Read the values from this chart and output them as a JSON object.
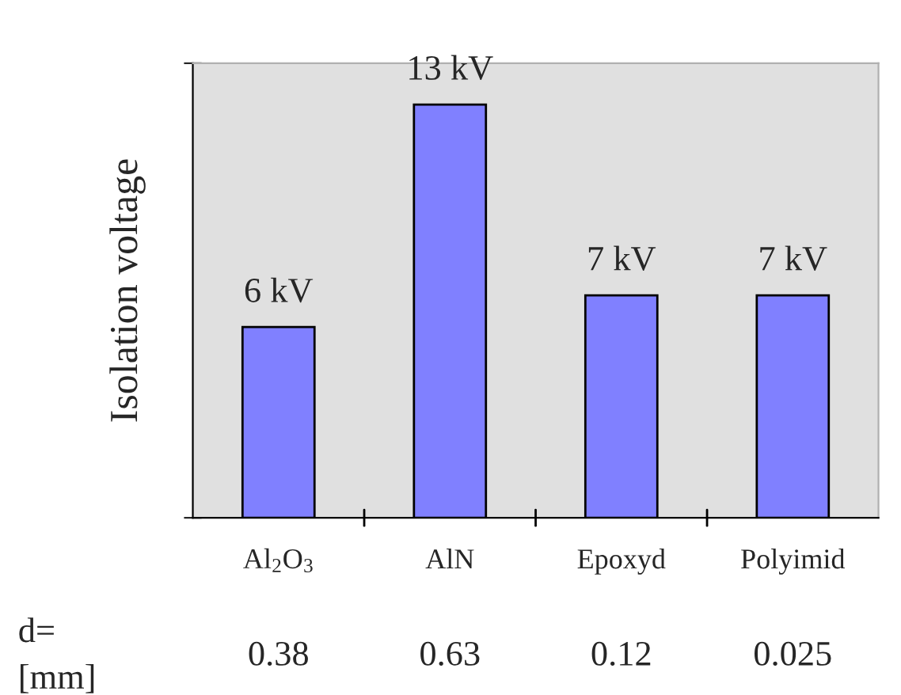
{
  "chart_data": {
    "type": "bar",
    "ylabel": "Isolation voltage",
    "categories": [
      "Al$_{2}$O$_{3}$",
      "AlN",
      "Epoxyd",
      "Polyimid"
    ],
    "values": [
      6,
      13,
      7,
      7
    ],
    "value_labels": [
      "6 kV",
      "13 kV",
      "7 kV",
      "7 kV"
    ],
    "color": "#8080ff",
    "ylim": [
      0,
      14.3
    ],
    "yticks": [
      {
        "value": 0,
        "label": null
      },
      {
        "value": 14.3,
        "label": null
      }
    ],
    "grid": false,
    "legend": false,
    "annotations": [
      "d=\n[mm]",
      "0.38",
      "0.63",
      "0.12",
      "0.025"
    ]
  }
}
